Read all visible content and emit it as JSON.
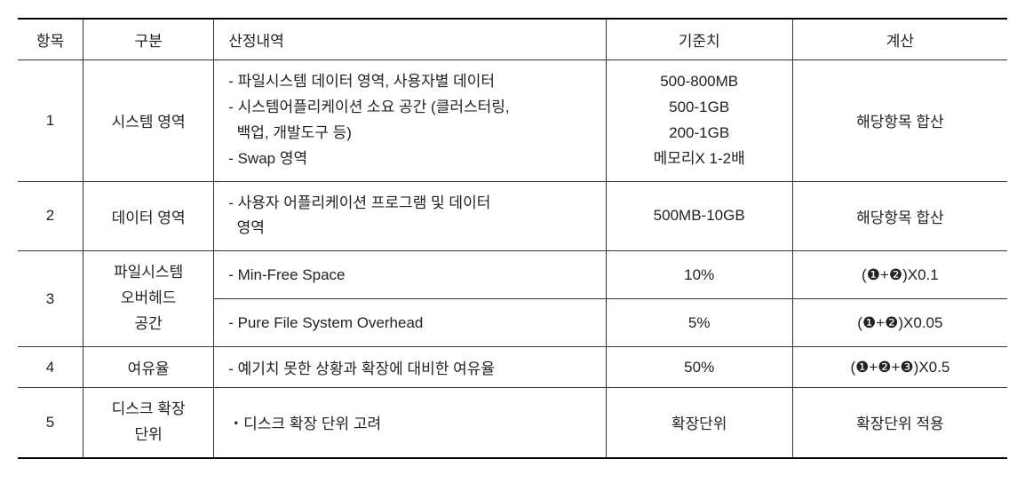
{
  "headers": {
    "idx": "항목",
    "cat": "구분",
    "detail": "산정내역",
    "ref": "기준치",
    "calc": "계산"
  },
  "rows": {
    "r1": {
      "idx": "1",
      "cat": "시스템 영역",
      "detail_l1": "- 파일시스템 데이터 영역, 사용자별 데이터",
      "detail_l2": "- 시스템어플리케이션 소요 공간 (클러스터링,",
      "detail_l3": "  백업, 개발도구 등)",
      "detail_l4": "- Swap 영역",
      "ref_l1": "500-800MB",
      "ref_l2": "500-1GB",
      "ref_l3": "200-1GB",
      "ref_l4": "메모리X 1-2배",
      "calc": "해당항목 합산"
    },
    "r2": {
      "idx": "2",
      "cat": "데이터 영역",
      "detail_l1": "- 사용자 어플리케이션 프로그램 및 데이터",
      "detail_l2": "  영역",
      "ref": "500MB-10GB",
      "calc": "해당항목 합산"
    },
    "r3a": {
      "idx": "3",
      "cat_l1": "파일시스템",
      "cat_l2": "오버헤드",
      "cat_l3": "공간",
      "detail": "- Min-Free Space",
      "ref": "10%",
      "calc": "(❶+❷)X0.1"
    },
    "r3b": {
      "detail": "- Pure File System Overhead",
      "ref": "5%",
      "calc": "(❶+❷)X0.05"
    },
    "r4": {
      "idx": "4",
      "cat": "여유율",
      "detail": "- 예기치 못한 상황과 확장에 대비한 여유율",
      "ref": "50%",
      "calc": "(❶+❷+❸)X0.5"
    },
    "r5": {
      "idx": "5",
      "cat_l1": "디스크 확장",
      "cat_l2": "단위",
      "detail": "・디스크 확장 단위 고려",
      "ref": "확장단위",
      "calc": "확장단위 적용"
    }
  }
}
